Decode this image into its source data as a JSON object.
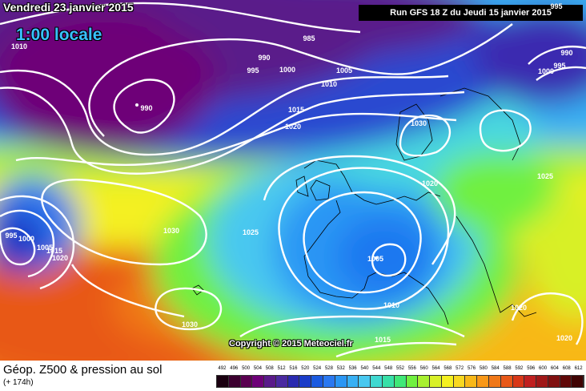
{
  "header": {
    "date": "Vendredi 23 janvier 2015",
    "time": "1:00 locale",
    "run": "Run GFS 18 Z du Jeudi 15 janvier 2015",
    "copyright": "Copyright © 2015 Meteociel.fr"
  },
  "legend": {
    "title": "Géop. Z500 & pression au sol",
    "subtitle": "(+ 174h)",
    "ticks": [
      "492",
      "496",
      "500",
      "504",
      "508",
      "512",
      "516",
      "520",
      "524",
      "528",
      "532",
      "536",
      "540",
      "544",
      "548",
      "552",
      "556",
      "560",
      "564",
      "568",
      "572",
      "576",
      "580",
      "584",
      "588",
      "592",
      "596",
      "600",
      "604",
      "608",
      "612"
    ],
    "colors": [
      "#1a0010",
      "#3c0030",
      "#5a0050",
      "#6e0078",
      "#5a1a8a",
      "#4a2aa0",
      "#2a2ab0",
      "#1a3cc8",
      "#1a5ae0",
      "#2a78f0",
      "#2a96f4",
      "#38b0f4",
      "#48c8f0",
      "#40d8d0",
      "#38e0a8",
      "#40e878",
      "#70f040",
      "#a8f030",
      "#d8f028",
      "#f4f020",
      "#f8d820",
      "#f8b818",
      "#f89818",
      "#f07818",
      "#e85818",
      "#d83818",
      "#c02020",
      "#a01818",
      "#801010",
      "#600808",
      "#400404"
    ]
  },
  "isobars": [
    {
      "label": "985"
    },
    {
      "label": "990"
    },
    {
      "label": "995"
    },
    {
      "label": "1000"
    },
    {
      "label": "1005"
    },
    {
      "label": "1010"
    },
    {
      "label": "1015"
    },
    {
      "label": "1020"
    },
    {
      "label": "990"
    },
    {
      "label": "1030"
    },
    {
      "label": "990"
    },
    {
      "label": "995"
    },
    {
      "label": "1000"
    },
    {
      "label": "1020"
    },
    {
      "label": "1025"
    },
    {
      "label": "1030"
    },
    {
      "label": "1025"
    },
    {
      "label": "1005"
    },
    {
      "label": "1010"
    },
    {
      "label": "1015"
    },
    {
      "label": "1020"
    },
    {
      "label": "1020"
    },
    {
      "label": "1030"
    },
    {
      "label": "1010"
    },
    {
      "label": "995"
    },
    {
      "label": "1000"
    },
    {
      "label": "1005"
    },
    {
      "label": "1015"
    },
    {
      "label": "1020"
    },
    {
      "label": "995"
    }
  ]
}
